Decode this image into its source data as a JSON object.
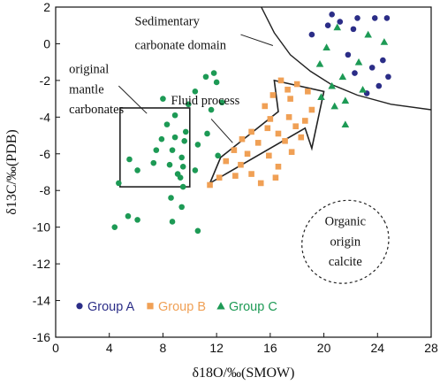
{
  "chart_data": {
    "type": "scatter",
    "xlabel": "δ18O/‰(SMOW)",
    "ylabel": "δ13C/‰(PDB)",
    "xlim": [
      0,
      28
    ],
    "ylim": [
      -16,
      2
    ],
    "xticks": [
      0,
      4,
      8,
      12,
      16,
      20,
      24,
      28
    ],
    "yticks": [
      2,
      0,
      -2,
      -4,
      -6,
      -8,
      -10,
      -12,
      -14,
      -16
    ],
    "grid": false,
    "legend_position": "bottom-left",
    "annotations": {
      "sedimentary": [
        "Sedimentary",
        "carbonate domain"
      ],
      "mantle": [
        "original",
        "mantle",
        "carbonates"
      ],
      "fluid": "Fluid process",
      "organic": [
        "Organic",
        "origin",
        "calcite"
      ]
    },
    "series": [
      {
        "name": "Group A",
        "marker": "circle",
        "color": "#2b2d87",
        "points": [
          [
            22.5,
            1.4
          ],
          [
            20.6,
            1.6
          ],
          [
            21.2,
            1.2
          ],
          [
            23.8,
            1.4
          ],
          [
            24.7,
            1.4
          ],
          [
            20.3,
            1.0
          ],
          [
            22.2,
            0.8
          ],
          [
            19.1,
            0.5
          ],
          [
            21.8,
            -0.6
          ],
          [
            24.4,
            -0.9
          ],
          [
            23.6,
            -1.3
          ],
          [
            22.3,
            -1.6
          ],
          [
            24.8,
            -1.8
          ],
          [
            24.1,
            -2.3
          ],
          [
            23.2,
            -2.7
          ]
        ]
      },
      {
        "name": "Group B",
        "marker": "square",
        "color": "#f0a055",
        "points": [
          [
            16.8,
            -2.0
          ],
          [
            17.3,
            -2.5
          ],
          [
            18.0,
            -2.2
          ],
          [
            18.8,
            -2.6
          ],
          [
            16.2,
            -2.8
          ],
          [
            17.5,
            -3.0
          ],
          [
            15.6,
            -3.4
          ],
          [
            19.1,
            -3.6
          ],
          [
            17.4,
            -4.0
          ],
          [
            16.0,
            -4.1
          ],
          [
            18.6,
            -4.2
          ],
          [
            15.8,
            -4.6
          ],
          [
            17.9,
            -4.5
          ],
          [
            14.6,
            -4.8
          ],
          [
            16.6,
            -4.9
          ],
          [
            13.9,
            -5.2
          ],
          [
            15.1,
            -5.4
          ],
          [
            17.1,
            -5.3
          ],
          [
            18.3,
            -5.1
          ],
          [
            13.3,
            -5.8
          ],
          [
            14.3,
            -6.0
          ],
          [
            15.9,
            -6.1
          ],
          [
            17.6,
            -5.9
          ],
          [
            12.7,
            -6.4
          ],
          [
            13.8,
            -6.6
          ],
          [
            16.6,
            -6.7
          ],
          [
            14.6,
            -7.1
          ],
          [
            12.2,
            -7.3
          ],
          [
            13.4,
            -7.2
          ],
          [
            15.3,
            -7.6
          ],
          [
            16.4,
            -7.3
          ],
          [
            11.5,
            -7.7
          ]
        ]
      },
      {
        "name": "Group C",
        "marker": "triangle",
        "color": "#1d9a55",
        "points": [
          [
            21.0,
            0.9
          ],
          [
            23.3,
            0.5
          ],
          [
            20.2,
            -0.2
          ],
          [
            24.5,
            0.1
          ],
          [
            19.7,
            -1.1
          ],
          [
            22.6,
            -1.0
          ],
          [
            21.4,
            -1.8
          ],
          [
            20.6,
            -2.3
          ],
          [
            22.9,
            -2.5
          ],
          [
            19.8,
            -2.9
          ],
          [
            21.6,
            -3.1
          ],
          [
            20.8,
            -3.4
          ],
          [
            21.6,
            -4.4
          ]
        ]
      },
      {
        "name": "Group C",
        "marker": "circle",
        "color": "#1d9a55",
        "points": [
          [
            11.8,
            -1.6
          ],
          [
            11.2,
            -1.8
          ],
          [
            12.0,
            -2.1
          ],
          [
            10.4,
            -2.6
          ],
          [
            8.0,
            -3.0
          ],
          [
            9.9,
            -3.3
          ],
          [
            11.6,
            -3.6
          ],
          [
            12.4,
            -3.2
          ],
          [
            8.9,
            -3.9
          ],
          [
            8.3,
            -4.4
          ],
          [
            9.7,
            -4.8
          ],
          [
            11.3,
            -4.9
          ],
          [
            7.9,
            -5.2
          ],
          [
            8.9,
            -5.1
          ],
          [
            9.6,
            -5.3
          ],
          [
            10.6,
            -5.5
          ],
          [
            7.5,
            -5.8
          ],
          [
            8.7,
            -5.8
          ],
          [
            9.4,
            -6.2
          ],
          [
            12.1,
            -6.1
          ],
          [
            7.3,
            -6.5
          ],
          [
            8.5,
            -6.6
          ],
          [
            9.5,
            -6.7
          ],
          [
            10.4,
            -6.9
          ],
          [
            5.5,
            -6.3
          ],
          [
            9.1,
            -7.1
          ],
          [
            9.3,
            -7.3
          ],
          [
            6.1,
            -6.9
          ],
          [
            4.7,
            -7.6
          ],
          [
            9.5,
            -7.8
          ],
          [
            8.6,
            -8.4
          ],
          [
            9.4,
            -8.9
          ],
          [
            5.4,
            -9.4
          ],
          [
            6.1,
            -9.6
          ],
          [
            8.7,
            -9.7
          ],
          [
            4.4,
            -10.0
          ],
          [
            10.6,
            -10.2
          ]
        ]
      }
    ],
    "legend": [
      {
        "label": "Group A",
        "marker": "circle",
        "color": "#2b2d87",
        "text_color": "#2b2d87"
      },
      {
        "label": "Group B",
        "marker": "square",
        "color": "#f0a055",
        "text_color": "#f0a055"
      },
      {
        "label": "Group C",
        "marker": "triangle",
        "color": "#1d9a55",
        "text_color": "#1d9a55"
      }
    ]
  }
}
